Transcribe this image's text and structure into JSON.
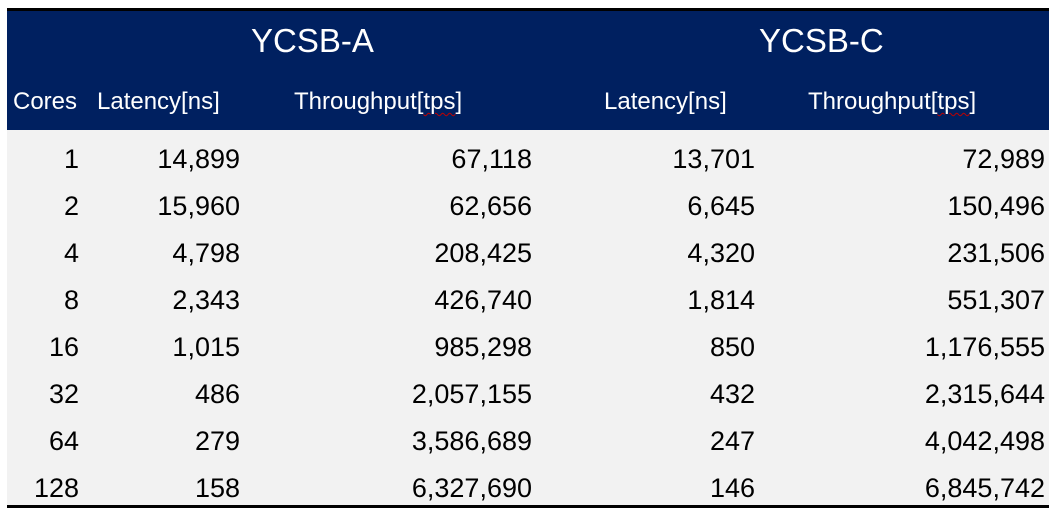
{
  "chart_data": {
    "type": "table",
    "groups": [
      {
        "label": "YCSB-A"
      },
      {
        "label": "YCSB-C"
      }
    ],
    "columns": [
      {
        "label": "Cores"
      },
      {
        "label": "Latency[ns]"
      },
      {
        "label": "Throughput[tps]"
      },
      {
        "label": "Latency[ns]"
      },
      {
        "label": "Throughput[tps]"
      }
    ],
    "rows": [
      [
        "1",
        "14,899",
        "67,118",
        "13,701",
        "72,989"
      ],
      [
        "2",
        "15,960",
        "62,656",
        "6,645",
        "150,496"
      ],
      [
        "4",
        "4,798",
        "208,425",
        "4,320",
        "231,506"
      ],
      [
        "8",
        "2,343",
        "426,740",
        "1,814",
        "551,307"
      ],
      [
        "16",
        "1,015",
        "985,298",
        "850",
        "1,176,555"
      ],
      [
        "32",
        "486",
        "2,057,155",
        "432",
        "2,315,644"
      ],
      [
        "64",
        "279",
        "3,586,689",
        "247",
        "4,042,498"
      ],
      [
        "128",
        "158",
        "6,327,690",
        "146",
        "6,845,742"
      ]
    ]
  },
  "colors": {
    "header_bg": "#002060",
    "header_text": "#ffffff",
    "body_bg": "#f2f2f2",
    "body_text": "#000000",
    "border": "#000000"
  }
}
